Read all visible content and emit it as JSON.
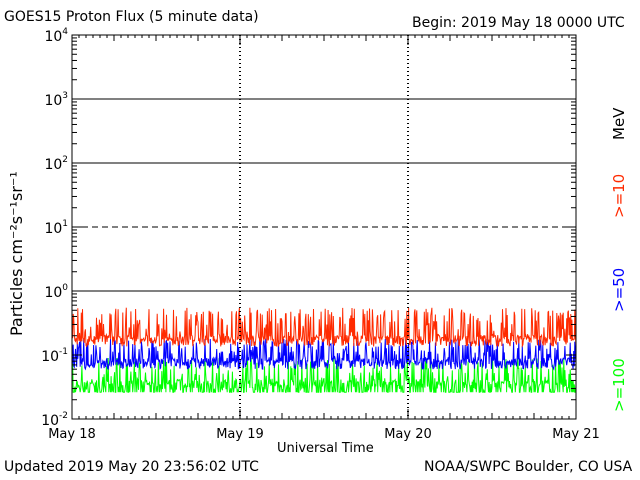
{
  "header": {
    "title": "GOES15 Proton Flux (5 minute data)",
    "begin": "Begin: 2019 May 18 0000 UTC"
  },
  "footer": {
    "updated": "Updated 2019 May 20 23:56:02 UTC",
    "credit": "NOAA/SWPC Boulder, CO USA"
  },
  "chart_data": {
    "type": "line",
    "title": "GOES15 Proton Flux (5 minute data)",
    "xlabel": "Universal Time",
    "ylabel": "Particles cm⁻²s⁻¹sr⁻¹",
    "yscale": "log",
    "ylim": [
      0.01,
      10000
    ],
    "yticks": [
      {
        "value": 0.01,
        "base": "10",
        "exp": "-2"
      },
      {
        "value": 0.1,
        "base": "10",
        "exp": "-1"
      },
      {
        "value": 1,
        "base": "10",
        "exp": "0"
      },
      {
        "value": 10,
        "base": "10",
        "exp": "1"
      },
      {
        "value": 100,
        "base": "10",
        "exp": "2"
      },
      {
        "value": 1000,
        "base": "10",
        "exp": "3"
      },
      {
        "value": 10000,
        "base": "10",
        "exp": "4"
      }
    ],
    "xlim": [
      "May 18",
      "May 21"
    ],
    "xticks": [
      "May 18",
      "May 19",
      "May 20",
      "May 21"
    ],
    "horizontal_lines": [
      {
        "value": 1,
        "style": "solid"
      },
      {
        "value": 10,
        "style": "dashed"
      },
      {
        "value": 100,
        "style": "solid"
      },
      {
        "value": 1000,
        "style": "solid"
      }
    ],
    "energy_unit": "MeV",
    "series": [
      {
        "name": ">=10",
        "color": "#ff2a00",
        "baseline": 0.17,
        "spike_max": 0.55
      },
      {
        "name": ">=50",
        "color": "#0000ff",
        "baseline": 0.075,
        "spike_max": 0.18
      },
      {
        "name": ">=100",
        "color": "#00ff00",
        "baseline": 0.035,
        "spike_max": 0.09
      }
    ]
  }
}
